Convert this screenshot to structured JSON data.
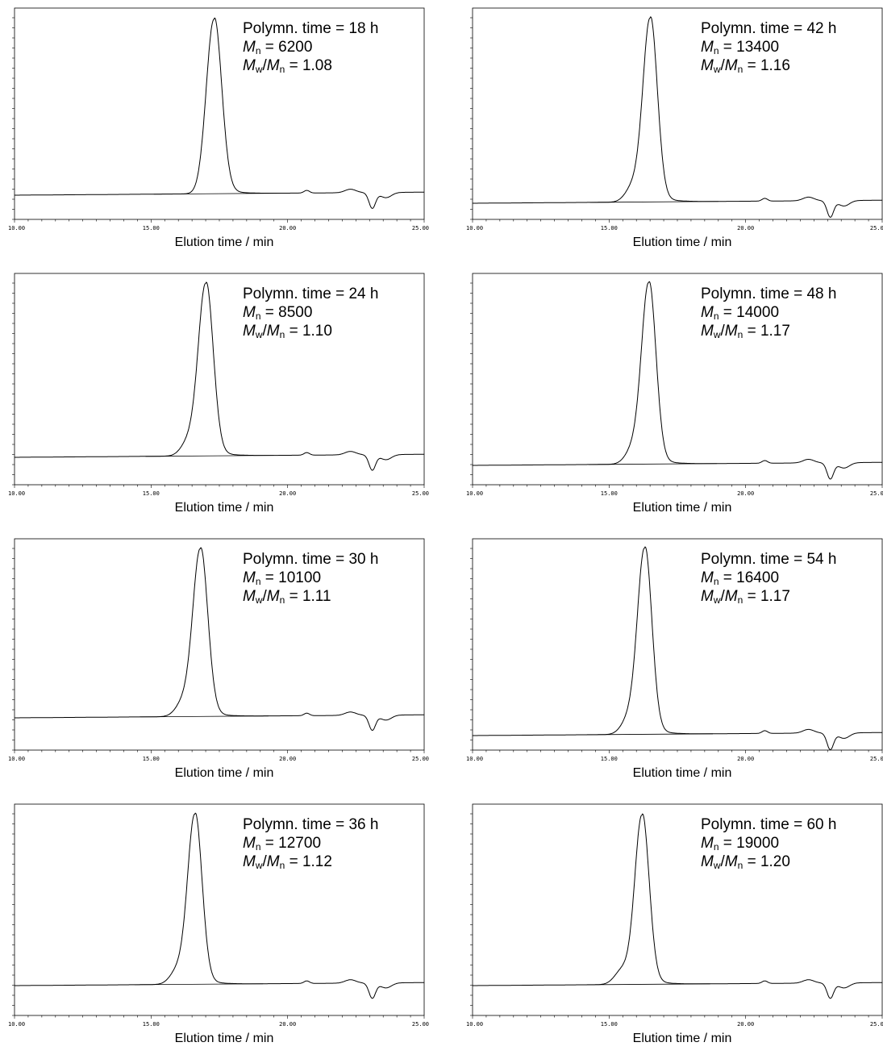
{
  "chart_data": [
    {
      "type": "line",
      "xlabel": "Elution time / min",
      "xlim": [
        10,
        25
      ],
      "x_ticks": [
        "10.00",
        "15.00",
        "20.00",
        "25.00"
      ],
      "annotation": {
        "time": "Polymn. time = 18 h",
        "mn_value": "= 6200",
        "pdi_value": "= 1.08"
      },
      "series": [
        {
          "peak_x": 17.3,
          "peak_width": 0.28,
          "shoulder": null
        }
      ]
    },
    {
      "type": "line",
      "xlabel": "Elution time / min",
      "xlim": [
        10,
        25
      ],
      "x_ticks": [
        "10.00",
        "15.00",
        "20.00",
        "25.00"
      ],
      "annotation": {
        "time": "Polymn. time = 42 h",
        "mn_value": "= 13400",
        "pdi_value": "= 1.16"
      },
      "series": [
        {
          "peak_x": 16.5,
          "peak_width": 0.26,
          "shoulder": 15.9
        }
      ]
    },
    {
      "type": "line",
      "xlabel": "Elution time / min",
      "xlim": [
        10,
        25
      ],
      "x_ticks": [
        "10.00",
        "15.00",
        "20.00",
        "25.00"
      ],
      "annotation": {
        "time": "Polymn. time = 24 h",
        "mn_value": "= 8500",
        "pdi_value": "= 1.10"
      },
      "series": [
        {
          "peak_x": 17.0,
          "peak_width": 0.27,
          "shoulder": 16.4
        }
      ]
    },
    {
      "type": "line",
      "xlabel": "Elution time / min",
      "xlim": [
        10,
        25
      ],
      "x_ticks": [
        "10.00",
        "15.00",
        "20.00",
        "25.00"
      ],
      "annotation": {
        "time": "Polymn. time = 48 h",
        "mn_value": "= 14000",
        "pdi_value": "= 1.17"
      },
      "series": [
        {
          "peak_x": 16.45,
          "peak_width": 0.26,
          "shoulder": 15.9
        }
      ]
    },
    {
      "type": "line",
      "xlabel": "Elution time / min",
      "xlim": [
        10,
        25
      ],
      "x_ticks": [
        "10.00",
        "15.00",
        "20.00",
        "25.00"
      ],
      "annotation": {
        "time": "Polymn. time = 30 h",
        "mn_value": "= 10100",
        "pdi_value": "= 1.11"
      },
      "series": [
        {
          "peak_x": 16.8,
          "peak_width": 0.27,
          "shoulder": 16.2
        }
      ]
    },
    {
      "type": "line",
      "xlabel": "Elution time / min",
      "xlim": [
        10,
        25
      ],
      "x_ticks": [
        "10.00",
        "15.00",
        "20.00",
        "25.00"
      ],
      "annotation": {
        "time": "Polymn. time = 54 h",
        "mn_value": "= 16400",
        "pdi_value": "= 1.17"
      },
      "series": [
        {
          "peak_x": 16.3,
          "peak_width": 0.26,
          "shoulder": 15.75
        }
      ]
    },
    {
      "type": "line",
      "xlabel": "Elution time / min",
      "xlim": [
        10,
        25
      ],
      "x_ticks": [
        "10.00",
        "15.00",
        "20.00",
        "25.00"
      ],
      "annotation": {
        "time": "Polymn. time = 36 h",
        "mn_value": "= 12700",
        "pdi_value": "= 1.12"
      },
      "series": [
        {
          "peak_x": 16.6,
          "peak_width": 0.26,
          "shoulder": 16.0
        }
      ]
    },
    {
      "type": "line",
      "xlabel": "Elution time / min",
      "xlim": [
        10,
        25
      ],
      "x_ticks": [
        "10.00",
        "15.00",
        "20.00",
        "25.00"
      ],
      "annotation": {
        "time": "Polymn. time = 60 h",
        "mn_value": "= 19000",
        "pdi_value": "= 1.20"
      },
      "series": [
        {
          "peak_x": 16.2,
          "peak_width": 0.26,
          "shoulder": 15.5
        }
      ]
    }
  ]
}
